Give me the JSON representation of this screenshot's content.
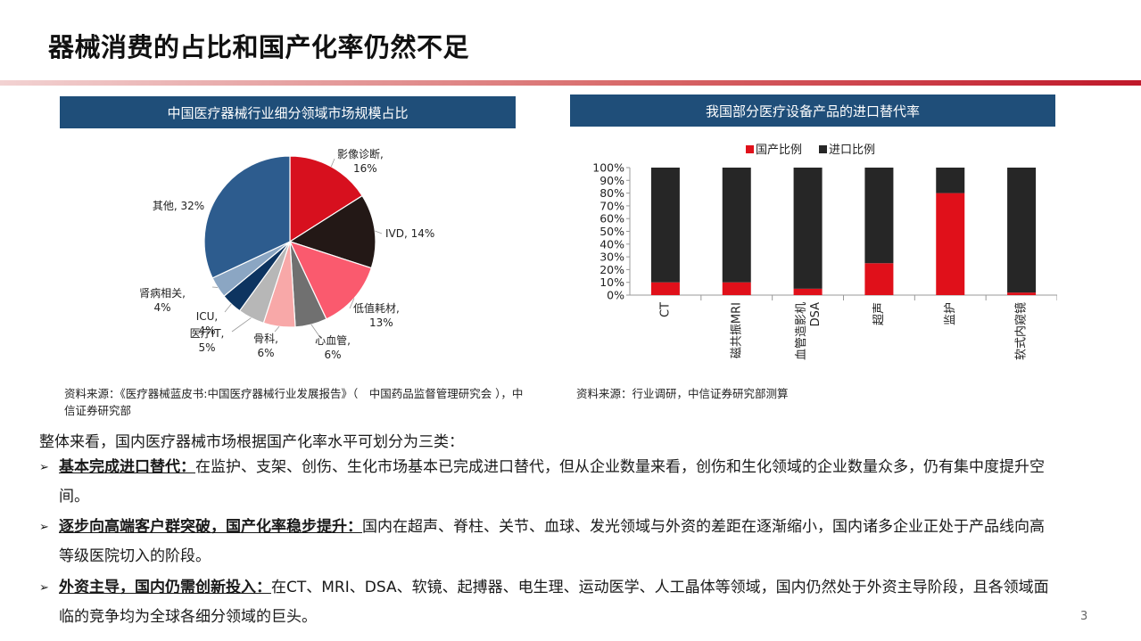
{
  "page": {
    "title": "器械消费的占比和国产化率仍然不足",
    "page_number": "3"
  },
  "colors": {
    "title_rule": "#c0392b",
    "header_bg": "#1f4e79",
    "domestic": "#e0101a",
    "imported": "#262626"
  },
  "pie_panel": {
    "header": "中国医疗器械行业细分领域市场规模占比",
    "source": "资料来源：《医疗器械蓝皮书:中国医疗器械行业发展报告》（　中国药品监督管理研究会 ），中信证券研究部"
  },
  "bar_panel": {
    "header": "我国部分医疗设备产品的进口替代率",
    "source": "资料来源：行业调研，中信证券研究部测算"
  },
  "chart_data": [
    {
      "type": "pie",
      "slices": [
        {
          "label": "影像诊断,",
          "value_label": "16%",
          "value": 16,
          "color": "#d7101e"
        },
        {
          "label": "IVD,",
          "value_label": "14%",
          "value": 14,
          "color": "#231816"
        },
        {
          "label": "低值耗材,",
          "value_label": "13%",
          "value": 13,
          "color": "#fa5a6e"
        },
        {
          "label": "心血管,",
          "value_label": "6%",
          "value": 6,
          "color": "#707070"
        },
        {
          "label": "骨科,",
          "value_label": "6%",
          "value": 6,
          "color": "#f8a8a8"
        },
        {
          "label": "医疗IT,",
          "value_label": "5%",
          "value": 5,
          "color": "#b7b7b7"
        },
        {
          "label": "ICU,",
          "value_label": "4%",
          "value": 4,
          "color": "#0d3460"
        },
        {
          "label": "肾病相关,",
          "value_label": "4%",
          "value": 4,
          "color": "#8ba6c3"
        },
        {
          "label": "其他,",
          "value_label": "32%",
          "value": 32,
          "color": "#2d5c8e"
        }
      ]
    },
    {
      "type": "bar",
      "stacked": true,
      "percent": true,
      "categories": [
        "CT",
        "磁共振MRI",
        "血管造影机 DSA",
        "超声",
        "监护",
        "软式内窥镜"
      ],
      "series": [
        {
          "name": "国产比例",
          "color": "#e0101a",
          "values": [
            10,
            10,
            5,
            25,
            80,
            2
          ]
        },
        {
          "name": "进口比例",
          "color": "#262626",
          "values": [
            90,
            90,
            95,
            75,
            20,
            98
          ]
        }
      ],
      "yticks": [
        "0%",
        "10%",
        "20%",
        "30%",
        "40%",
        "50%",
        "60%",
        "70%",
        "80%",
        "90%",
        "100%"
      ],
      "ylim": [
        0,
        100
      ],
      "legend": "top"
    }
  ],
  "text": {
    "intro": "整体来看，国内医疗器械市场根据国产化率水平可划分为三类：",
    "bullets": [
      {
        "lead": "基本完成进口替代：",
        "body": "在监护、支架、创伤、生化市场基本已完成进口替代，但从企业数量来看，创伤和生化领域的企业数量众多，仍有集中度提升空间。"
      },
      {
        "lead": "逐步向高端客户群突破，国产化率稳步提升：",
        "body": "国内在超声、脊柱、关节、血球、发光领域与外资的差距在逐渐缩小，国内诸多企业正处于产品线向高等级医院切入的阶段。"
      },
      {
        "lead": "外资主导，国内仍需创新投入：",
        "body": "在CT、MRI、DSA、软镜、起搏器、电生理、运动医学、人工晶体等领域，国内仍然处于外资主导阶段，且各领域面临的竞争均为全球各细分领域的巨头。"
      }
    ],
    "bullet_marker": "➢"
  }
}
